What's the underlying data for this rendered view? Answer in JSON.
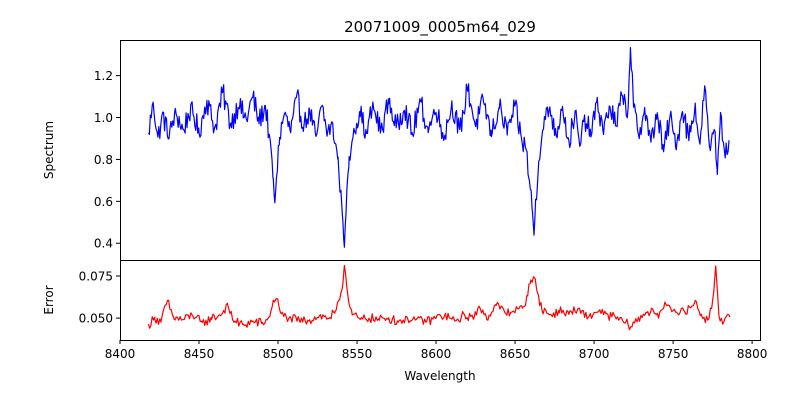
{
  "chart_data": [
    {
      "type": "line",
      "title": "20071009_0005m64_029",
      "xlabel": "",
      "ylabel": "Spectrum",
      "xlim": [
        8400,
        8805
      ],
      "ylim": [
        0.32,
        1.37
      ],
      "yticks": [
        "0.4",
        "0.6",
        "0.8",
        "1.0",
        "1.2"
      ],
      "yticks_values": [
        0.4,
        0.6,
        0.8,
        1.0,
        1.2
      ],
      "grid": false,
      "series": [
        {
          "color": "#0000ff",
          "control_points": [
            [
              8418,
              0.92
            ],
            [
              8421,
              1.08
            ],
            [
              8424,
              0.9
            ],
            [
              8427,
              1.02
            ],
            [
              8431,
              0.9
            ],
            [
              8435,
              1.03
            ],
            [
              8440,
              0.94
            ],
            [
              8445,
              1.05
            ],
            [
              8450,
              0.93
            ],
            [
              8455,
              1.08
            ],
            [
              8460,
              0.95
            ],
            [
              8465,
              1.12
            ],
            [
              8470,
              0.97
            ],
            [
              8475,
              1.06
            ],
            [
              8480,
              0.99
            ],
            [
              8484,
              1.1
            ],
            [
              8488,
              0.98
            ],
            [
              8492,
              1.06
            ],
            [
              8495,
              0.88
            ],
            [
              8497,
              0.7
            ],
            [
              8498,
              0.58
            ],
            [
              8499,
              0.72
            ],
            [
              8501,
              0.9
            ],
            [
              8504,
              1.02
            ],
            [
              8508,
              0.93
            ],
            [
              8512,
              1.1
            ],
            [
              8516,
              0.95
            ],
            [
              8520,
              1.04
            ],
            [
              8524,
              0.9
            ],
            [
              8528,
              1.06
            ],
            [
              8531,
              0.92
            ],
            [
              8534,
              0.97
            ],
            [
              8536,
              0.88
            ],
            [
              8538,
              0.8
            ],
            [
              8540,
              0.62
            ],
            [
              8541,
              0.52
            ],
            [
              8542,
              0.37
            ],
            [
              8543,
              0.55
            ],
            [
              8545,
              0.8
            ],
            [
              8548,
              0.95
            ],
            [
              8552,
              1.02
            ],
            [
              8556,
              0.92
            ],
            [
              8560,
              1.06
            ],
            [
              8565,
              0.93
            ],
            [
              8570,
              1.08
            ],
            [
              8575,
              0.95
            ],
            [
              8580,
              1.05
            ],
            [
              8585,
              0.92
            ],
            [
              8590,
              1.08
            ],
            [
              8595,
              0.94
            ],
            [
              8600,
              1.04
            ],
            [
              8605,
              0.9
            ],
            [
              8610,
              1.07
            ],
            [
              8615,
              0.93
            ],
            [
              8620,
              1.14
            ],
            [
              8625,
              0.96
            ],
            [
              8630,
              1.08
            ],
            [
              8635,
              0.92
            ],
            [
              8640,
              1.05
            ],
            [
              8645,
              0.93
            ],
            [
              8650,
              1.05
            ],
            [
              8654,
              0.9
            ],
            [
              8657,
              0.85
            ],
            [
              8659,
              0.7
            ],
            [
              8661,
              0.55
            ],
            [
              8662,
              0.44
            ],
            [
              8663,
              0.6
            ],
            [
              8665,
              0.8
            ],
            [
              8668,
              0.96
            ],
            [
              8672,
              1.05
            ],
            [
              8676,
              0.92
            ],
            [
              8680,
              1.06
            ],
            [
              8684,
              0.88
            ],
            [
              8688,
              1.02
            ],
            [
              8691,
              0.86
            ],
            [
              8694,
              1.0
            ],
            [
              8698,
              0.92
            ],
            [
              8702,
              1.08
            ],
            [
              8706,
              0.93
            ],
            [
              8710,
              1.06
            ],
            [
              8714,
              0.95
            ],
            [
              8718,
              1.12
            ],
            [
              8721,
              1.0
            ],
            [
              8723,
              1.32
            ],
            [
              8725,
              1.05
            ],
            [
              8728,
              0.92
            ],
            [
              8732,
              1.04
            ],
            [
              8736,
              0.88
            ],
            [
              8740,
              1.02
            ],
            [
              8744,
              0.84
            ],
            [
              8748,
              1.0
            ],
            [
              8752,
              0.86
            ],
            [
              8756,
              1.04
            ],
            [
              8760,
              0.9
            ],
            [
              8764,
              1.06
            ],
            [
              8767,
              0.86
            ],
            [
              8770,
              1.15
            ],
            [
              8773,
              0.85
            ],
            [
              8776,
              0.95
            ],
            [
              8778,
              0.74
            ],
            [
              8780,
              1.02
            ],
            [
              8783,
              0.82
            ],
            [
              8786,
              0.9
            ]
          ],
          "noise_amplitude": 0.055
        }
      ]
    },
    {
      "type": "line",
      "title": "",
      "xlabel": "Wavelength",
      "ylabel": "Error",
      "xlim": [
        8400,
        8805
      ],
      "ylim": [
        0.037,
        0.0845
      ],
      "xticks": [
        "8400",
        "8450",
        "8500",
        "8550",
        "8600",
        "8650",
        "8700",
        "8750",
        "8800"
      ],
      "xticks_values": [
        8400,
        8450,
        8500,
        8550,
        8600,
        8650,
        8700,
        8750,
        8800
      ],
      "yticks": [
        "0.050",
        "0.075"
      ],
      "yticks_values": [
        0.05,
        0.075
      ],
      "grid": false,
      "series": [
        {
          "color": "#ff0000",
          "control_points": [
            [
              8418,
              0.046
            ],
            [
              8422,
              0.05
            ],
            [
              8426,
              0.048
            ],
            [
              8430,
              0.06
            ],
            [
              8434,
              0.05
            ],
            [
              8440,
              0.049
            ],
            [
              8446,
              0.052
            ],
            [
              8452,
              0.047
            ],
            [
              8458,
              0.05
            ],
            [
              8464,
              0.052
            ],
            [
              8468,
              0.058
            ],
            [
              8472,
              0.048
            ],
            [
              8478,
              0.046
            ],
            [
              8484,
              0.048
            ],
            [
              8490,
              0.047
            ],
            [
              8494,
              0.05
            ],
            [
              8497,
              0.06
            ],
            [
              8499,
              0.062
            ],
            [
              8502,
              0.052
            ],
            [
              8508,
              0.05
            ],
            [
              8514,
              0.048
            ],
            [
              8520,
              0.049
            ],
            [
              8526,
              0.051
            ],
            [
              8532,
              0.05
            ],
            [
              8536,
              0.053
            ],
            [
              8539,
              0.06
            ],
            [
              8541,
              0.07
            ],
            [
              8542,
              0.082
            ],
            [
              8544,
              0.065
            ],
            [
              8547,
              0.052
            ],
            [
              8552,
              0.049
            ],
            [
              8558,
              0.05
            ],
            [
              8564,
              0.049
            ],
            [
              8570,
              0.05
            ],
            [
              8576,
              0.048
            ],
            [
              8582,
              0.05
            ],
            [
              8588,
              0.049
            ],
            [
              8594,
              0.048
            ],
            [
              8600,
              0.05
            ],
            [
              8606,
              0.052
            ],
            [
              8612,
              0.048
            ],
            [
              8618,
              0.052
            ],
            [
              8624,
              0.05
            ],
            [
              8628,
              0.056
            ],
            [
              8632,
              0.05
            ],
            [
              8638,
              0.058
            ],
            [
              8644,
              0.053
            ],
            [
              8650,
              0.054
            ],
            [
              8655,
              0.056
            ],
            [
              8658,
              0.064
            ],
            [
              8660,
              0.073
            ],
            [
              8662,
              0.074
            ],
            [
              8664,
              0.066
            ],
            [
              8667,
              0.055
            ],
            [
              8672,
              0.052
            ],
            [
              8678,
              0.054
            ],
            [
              8684,
              0.053
            ],
            [
              8690,
              0.055
            ],
            [
              8696,
              0.05
            ],
            [
              8702,
              0.054
            ],
            [
              8708,
              0.052
            ],
            [
              8714,
              0.05
            ],
            [
              8720,
              0.047
            ],
            [
              8724,
              0.045
            ],
            [
              8728,
              0.05
            ],
            [
              8734,
              0.054
            ],
            [
              8740,
              0.052
            ],
            [
              8746,
              0.058
            ],
            [
              8752,
              0.054
            ],
            [
              8758,
              0.053
            ],
            [
              8764,
              0.06
            ],
            [
              8768,
              0.052
            ],
            [
              8772,
              0.048
            ],
            [
              8775,
              0.06
            ],
            [
              8777,
              0.081
            ],
            [
              8779,
              0.052
            ],
            [
              8782,
              0.048
            ],
            [
              8786,
              0.051
            ]
          ],
          "noise_amplitude": 0.0028
        }
      ]
    }
  ]
}
